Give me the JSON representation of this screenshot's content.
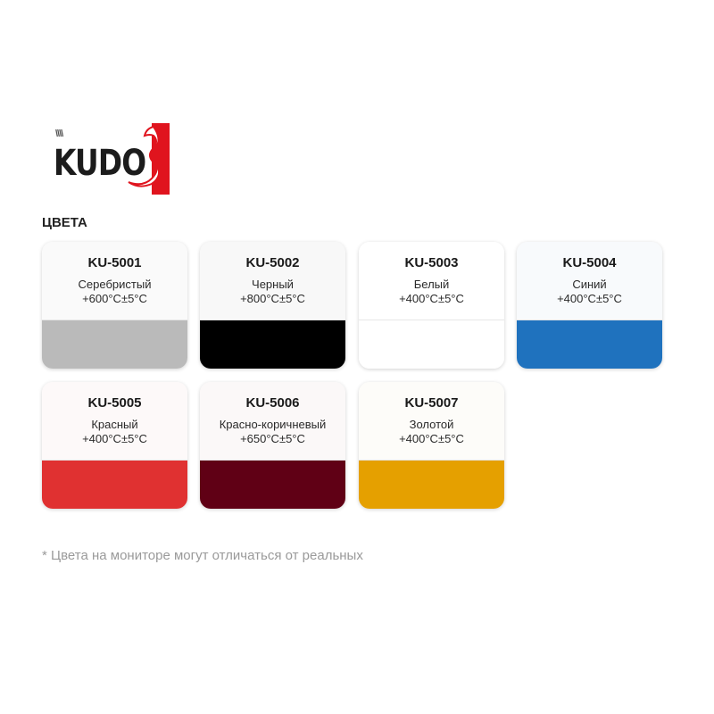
{
  "logo": {
    "text": "KUDO",
    "brand_color": "#e0141e"
  },
  "heading": "ЦВЕТА",
  "colors": [
    {
      "code": "KU-5001",
      "name": "Серебристый",
      "temp": "+600°C±5°C",
      "hex": "#bababa",
      "tint": "#fafafa"
    },
    {
      "code": "KU-5002",
      "name": "Черный",
      "temp": "+800°C±5°C",
      "hex": "#000000",
      "tint": "#f8f8f8"
    },
    {
      "code": "KU-5003",
      "name": "Белый",
      "temp": "+400°C±5°C",
      "hex": "#ffffff",
      "tint": "#ffffff"
    },
    {
      "code": "KU-5004",
      "name": "Синий",
      "temp": "+400°C±5°C",
      "hex": "#1f72be",
      "tint": "#f8fafc"
    },
    {
      "code": "KU-5005",
      "name": "Красный",
      "temp": "+400°C±5°C",
      "hex": "#e03131",
      "tint": "#fdf9f9"
    },
    {
      "code": "KU-5006",
      "name": "Красно-коричневый",
      "temp": "+650°C±5°C",
      "hex": "#600015",
      "tint": "#fbf8f8"
    },
    {
      "code": "KU-5007",
      "name": "Золотой",
      "temp": "+400°C±5°C",
      "hex": "#e5a000",
      "tint": "#fdfcf9"
    }
  ],
  "note": "* Цвета на мониторе могут отличаться от реальных"
}
